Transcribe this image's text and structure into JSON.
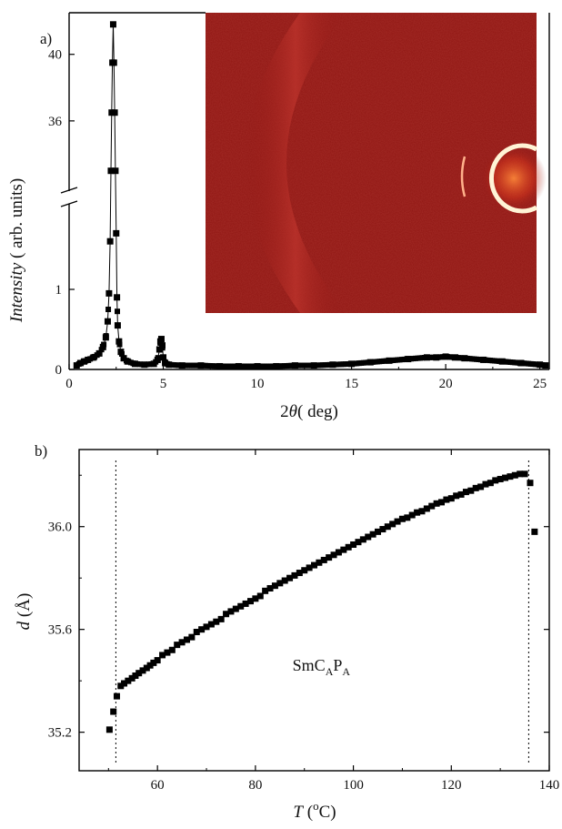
{
  "chart_data": [
    {
      "panel_label": "a)",
      "type": "line",
      "xlabel": "2θ( deg)",
      "xlabel_parts": {
        "symbol": "2",
        "var": "θ",
        "unit": "( deg)"
      },
      "ylabel": "Intensity ( arb. units)",
      "ylabel_parts": {
        "var": "Intensity",
        "unit": " ( arb. units)"
      },
      "xlim": [
        0,
        25.5
      ],
      "y_axis_break": {
        "lower_range": [
          0,
          2
        ],
        "upper_range": [
          32,
          42.5
        ]
      },
      "xticks": [
        "0",
        "5",
        "10",
        "15",
        "20",
        "25"
      ],
      "yticks_lower": [
        "0",
        "1"
      ],
      "yticks_upper": [
        "36",
        "40"
      ],
      "marker": "filled-square",
      "series": [
        {
          "x": [
            0.4,
            0.6,
            0.8,
            1.0,
            1.3,
            1.6,
            1.8,
            1.95,
            2.05,
            2.12,
            2.18,
            2.22,
            2.26,
            2.3,
            2.34,
            2.38,
            2.42,
            2.46,
            2.5,
            2.54,
            2.58,
            2.65,
            2.75,
            2.9,
            3.1,
            3.5,
            4.0,
            4.5,
            4.7,
            4.8,
            4.85,
            4.9,
            4.95,
            5.0,
            5.1,
            5.3,
            6,
            7,
            8,
            9,
            10,
            11,
            12,
            13,
            14,
            15,
            16,
            17,
            18,
            19,
            19.5,
            20,
            20.5,
            21,
            22,
            23,
            24,
            25,
            25.3
          ],
          "y": [
            0.05,
            0.08,
            0.1,
            0.12,
            0.15,
            0.2,
            0.28,
            0.4,
            0.6,
            0.95,
            1.6,
            33,
            36.5,
            39.5,
            41.8,
            39.5,
            36.5,
            33,
            1.7,
            0.9,
            0.55,
            0.35,
            0.22,
            0.14,
            0.1,
            0.07,
            0.06,
            0.07,
            0.12,
            0.25,
            0.35,
            0.38,
            0.3,
            0.15,
            0.08,
            0.06,
            0.05,
            0.05,
            0.04,
            0.04,
            0.04,
            0.04,
            0.05,
            0.05,
            0.06,
            0.07,
            0.09,
            0.11,
            0.13,
            0.15,
            0.15,
            0.16,
            0.15,
            0.14,
            0.12,
            0.1,
            0.08,
            0.06,
            0.05
          ]
        }
      ],
      "inset": {
        "type": "image",
        "description_color": "#8f1512"
      }
    },
    {
      "panel_label": "b)",
      "type": "scatter",
      "xlabel": "T (oC)",
      "xlabel_parts": {
        "var": "T",
        "unit_open": " (",
        "sup": "o",
        "unit_close": "C)"
      },
      "ylabel": "d (Å)",
      "ylabel_parts": {
        "var": "d",
        "unit": " (Å)"
      },
      "xlim": [
        44,
        140
      ],
      "ylim": [
        35.05,
        36.3
      ],
      "xticks": [
        60,
        80,
        100,
        120,
        140
      ],
      "yticks": [
        35.2,
        35.6,
        36.0
      ],
      "ytick_labels": [
        "35.2",
        "35.6",
        "36.0"
      ],
      "phase_boundaries": [
        51.5,
        135.8
      ],
      "annotation": {
        "base": "SmC",
        "sub1": "A",
        "mid": "P",
        "sub2": "A",
        "x": 95,
        "y": 35.44
      },
      "marker": "filled-square",
      "points": {
        "x": [
          50.2,
          51.0,
          51.7,
          52.5,
          53.2,
          54.0,
          54.8,
          55.5,
          56.2,
          57.0,
          57.8,
          58.5,
          59.2,
          60.0,
          61,
          62,
          63,
          64,
          65,
          66,
          67,
          68,
          69,
          70,
          71,
          72,
          73,
          74,
          75,
          76,
          77,
          78,
          79,
          80,
          81,
          82,
          83,
          84,
          85,
          86,
          87,
          88,
          89,
          90,
          91,
          92,
          93,
          94,
          95,
          96,
          97,
          98,
          99,
          100,
          101,
          102,
          103,
          104,
          105,
          106,
          107,
          108,
          109,
          110,
          111,
          112,
          113,
          114,
          115,
          116,
          117,
          118,
          119,
          120,
          121,
          122,
          123,
          124,
          125,
          126,
          127,
          128,
          129,
          130,
          131,
          132,
          133,
          134,
          135,
          136.1,
          137.0
        ],
        "y": [
          35.21,
          35.28,
          35.34,
          35.38,
          35.39,
          35.4,
          35.41,
          35.42,
          35.43,
          35.44,
          35.45,
          35.46,
          35.47,
          35.48,
          35.5,
          35.51,
          35.52,
          35.54,
          35.55,
          35.56,
          35.57,
          35.59,
          35.6,
          35.61,
          35.62,
          35.63,
          35.64,
          35.66,
          35.67,
          35.68,
          35.69,
          35.7,
          35.71,
          35.72,
          35.73,
          35.75,
          35.76,
          35.77,
          35.78,
          35.79,
          35.8,
          35.81,
          35.82,
          35.83,
          35.84,
          35.85,
          35.86,
          35.87,
          35.88,
          35.89,
          35.9,
          35.91,
          35.92,
          35.93,
          35.94,
          35.95,
          35.96,
          35.97,
          35.98,
          35.99,
          36.0,
          36.01,
          36.02,
          36.03,
          36.035,
          36.045,
          36.055,
          36.06,
          36.07,
          36.08,
          36.09,
          36.095,
          36.105,
          36.11,
          36.12,
          36.125,
          36.135,
          36.14,
          36.15,
          36.155,
          36.165,
          36.17,
          36.18,
          36.185,
          36.19,
          36.195,
          36.2,
          36.205,
          36.205,
          36.17,
          35.98
        ]
      }
    }
  ]
}
